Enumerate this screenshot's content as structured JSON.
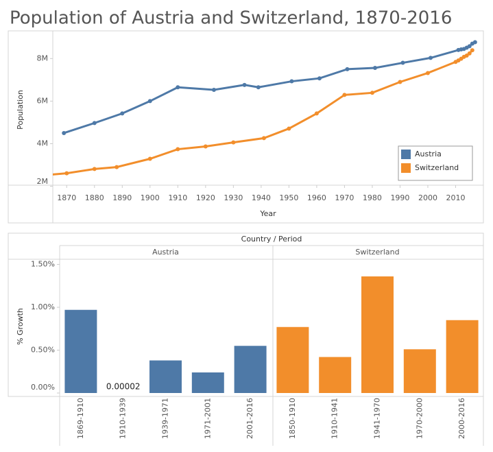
{
  "title": "Population of Austria and Switzerland, 1870-2016",
  "chart_data": [
    {
      "type": "line",
      "x_label": "Year",
      "y_label": "Population",
      "xlim": [
        1865,
        2020
      ],
      "xticks": [
        1870,
        1880,
        1890,
        1900,
        1910,
        1920,
        1930,
        1940,
        1950,
        1960,
        1970,
        1980,
        1990,
        2000,
        2010
      ],
      "ylim": [
        2050000,
        9300000
      ],
      "yticks": [
        {
          "value": 2000000,
          "label": "2M"
        },
        {
          "value": 4000000,
          "label": "4M"
        },
        {
          "value": 6000000,
          "label": "6M"
        },
        {
          "value": 8000000,
          "label": "8M"
        }
      ],
      "legend": "lower right",
      "series": [
        {
          "name": "Austria",
          "color": "#4e79a7",
          "x": [
            1869,
            1880,
            1890,
            1900,
            1910,
            1923,
            1934,
            1939,
            1951,
            1961,
            1971,
            1981,
            1991,
            2001,
            2011,
            2012,
            2013,
            2014,
            2015,
            2016,
            2017
          ],
          "values": [
            4500000,
            4970000,
            5420000,
            6000000,
            6650000,
            6530000,
            6760000,
            6650000,
            6930000,
            7070000,
            7500000,
            7560000,
            7800000,
            8030000,
            8400000,
            8430000,
            8450000,
            8510000,
            8580000,
            8700000,
            8770000
          ]
        },
        {
          "name": "Switzerland",
          "color": "#f28e2b",
          "x": [
            1850,
            1870,
            1880,
            1888,
            1900,
            1910,
            1920,
            1930,
            1941,
            1950,
            1960,
            1970,
            1980,
            1990,
            2000,
            2010,
            2011,
            2012,
            2013,
            2014,
            2015,
            2016
          ],
          "values": [
            2390000,
            2610000,
            2810000,
            2900000,
            3290000,
            3740000,
            3870000,
            4060000,
            4260000,
            4710000,
            5420000,
            6290000,
            6390000,
            6900000,
            7320000,
            7840000,
            7910000,
            7990000,
            8080000,
            8140000,
            8240000,
            8390000
          ]
        }
      ]
    },
    {
      "type": "bar",
      "x_label": "Country / Period",
      "y_label": "% Growth",
      "ylim": [
        0,
        1.56
      ],
      "yticks": [
        {
          "value": 0,
          "label": "0.00%"
        },
        {
          "value": 0.5,
          "label": "0.50%"
        },
        {
          "value": 1,
          "label": "1.00%"
        },
        {
          "value": 1.5,
          "label": "1.50%"
        }
      ],
      "series": [
        {
          "name": "Austria",
          "color": "#4e79a7",
          "categories": [
            "1869-1910",
            "1910-1939",
            "1939-1971",
            "1971-2001",
            "2001-2016"
          ],
          "values": [
            0.97,
            2e-05,
            0.38,
            0.24,
            0.55
          ],
          "value_labels": [
            null,
            "0.00002",
            null,
            null,
            null
          ]
        },
        {
          "name": "Switzerland",
          "color": "#f28e2b",
          "categories": [
            "1850-1910",
            "1910-1941",
            "1941-1970",
            "1970-2000",
            "2000-2016"
          ],
          "values": [
            0.77,
            0.42,
            1.36,
            0.51,
            0.85
          ]
        }
      ]
    }
  ]
}
